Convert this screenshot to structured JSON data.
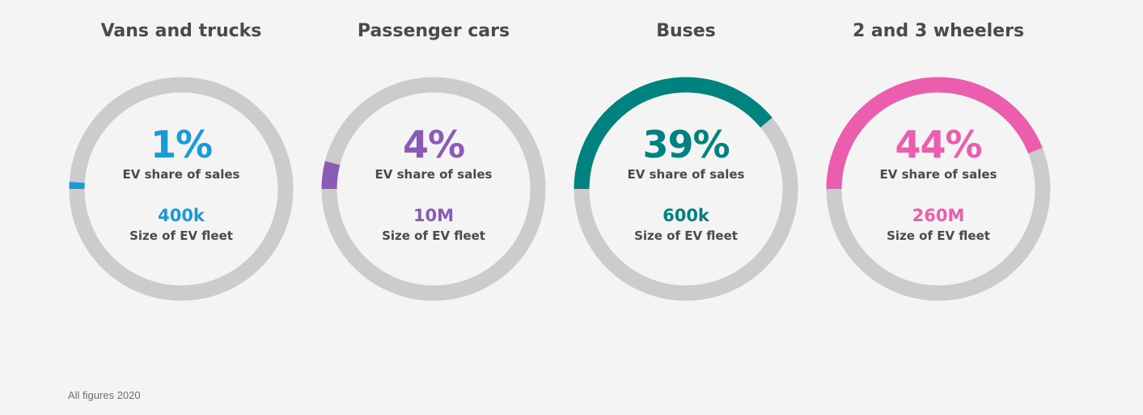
{
  "chart_data": [
    {
      "type": "donut",
      "title": "Vans and trucks",
      "value": 1,
      "value_label": "1%",
      "value_caption": "EV share of sales",
      "secondary_value": "400k",
      "secondary_caption": "Size of EV fleet",
      "color": "#1a9ad6"
    },
    {
      "type": "donut",
      "title": "Passenger cars",
      "value": 4,
      "value_label": "4%",
      "value_caption": "EV share of sales",
      "secondary_value": "10M",
      "secondary_caption": "Size of EV fleet",
      "color": "#8a5bb5"
    },
    {
      "type": "donut",
      "title": "Buses",
      "value": 39,
      "value_label": "39%",
      "value_caption": "EV share of sales",
      "secondary_value": "600k",
      "secondary_caption": "Size of EV fleet",
      "color": "#00837e"
    },
    {
      "type": "donut",
      "title": "2 and 3 wheelers",
      "value": 44,
      "value_label": "44%",
      "value_caption": "EV share of sales",
      "secondary_value": "260M",
      "secondary_caption": "Size of EV fleet",
      "color": "#eb5ead"
    }
  ],
  "track_color": "#cccccc",
  "footnote": "All figures 2020"
}
